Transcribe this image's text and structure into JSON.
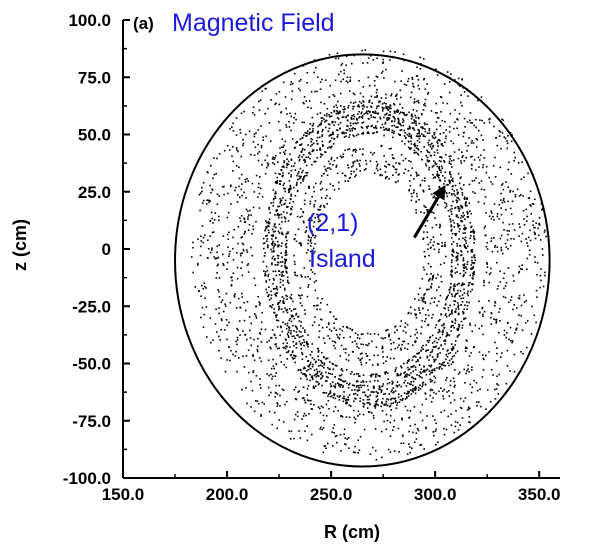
{
  "chart_data": {
    "type": "scatter",
    "panel_label": "(a)",
    "title": "Magnetic Field",
    "xlabel": "R (cm)",
    "ylabel": "z (cm)",
    "xlim": [
      150,
      360
    ],
    "ylim": [
      -100,
      100
    ],
    "x_ticks": [
      {
        "value": 150,
        "label": "150.0"
      },
      {
        "value": 200,
        "label": "200.0"
      },
      {
        "value": 250,
        "label": "250.0"
      },
      {
        "value": 300,
        "label": "300.0"
      },
      {
        "value": 350,
        "label": "350.0"
      }
    ],
    "y_ticks": [
      {
        "value": 100,
        "label": "100.0"
      },
      {
        "value": 75,
        "label": "75.0"
      },
      {
        "value": 50,
        "label": "50.0"
      },
      {
        "value": 25,
        "label": "25.0"
      },
      {
        "value": 0,
        "label": "0"
      },
      {
        "value": -25,
        "label": "-25.0"
      },
      {
        "value": -50,
        "label": "-50.0"
      },
      {
        "value": -75,
        "label": "-75.0"
      },
      {
        "value": -100,
        "label": "-100.0"
      }
    ],
    "grid": false,
    "point_color": "#000000",
    "title_color": "#1a1adf",
    "series": [
      {
        "name": "",
        "kind": "flux-surface-bands",
        "center": [
          268,
          -2
        ],
        "bands": [
          {
            "r_inner": 26,
            "r_outer": 38,
            "z_scale": 1.32,
            "density": "low"
          },
          {
            "r_inner": 40,
            "r_outer": 52,
            "z_scale": 1.32,
            "density": "high"
          },
          {
            "r_inner": 56,
            "r_outer": 86,
            "z_scale": 1.05,
            "density": "medium"
          }
        ]
      },
      {
        "name": "",
        "kind": "boundary",
        "center": [
          265,
          -5
        ],
        "r_halfwidth": 90,
        "z_halfheight": 90
      }
    ],
    "annotation": {
      "text_lines": [
        "(2,1)",
        "Island"
      ],
      "arrow_from": [
        290,
        5
      ],
      "arrow_to": [
        305,
        28
      ],
      "color": "#1a1adf"
    }
  }
}
